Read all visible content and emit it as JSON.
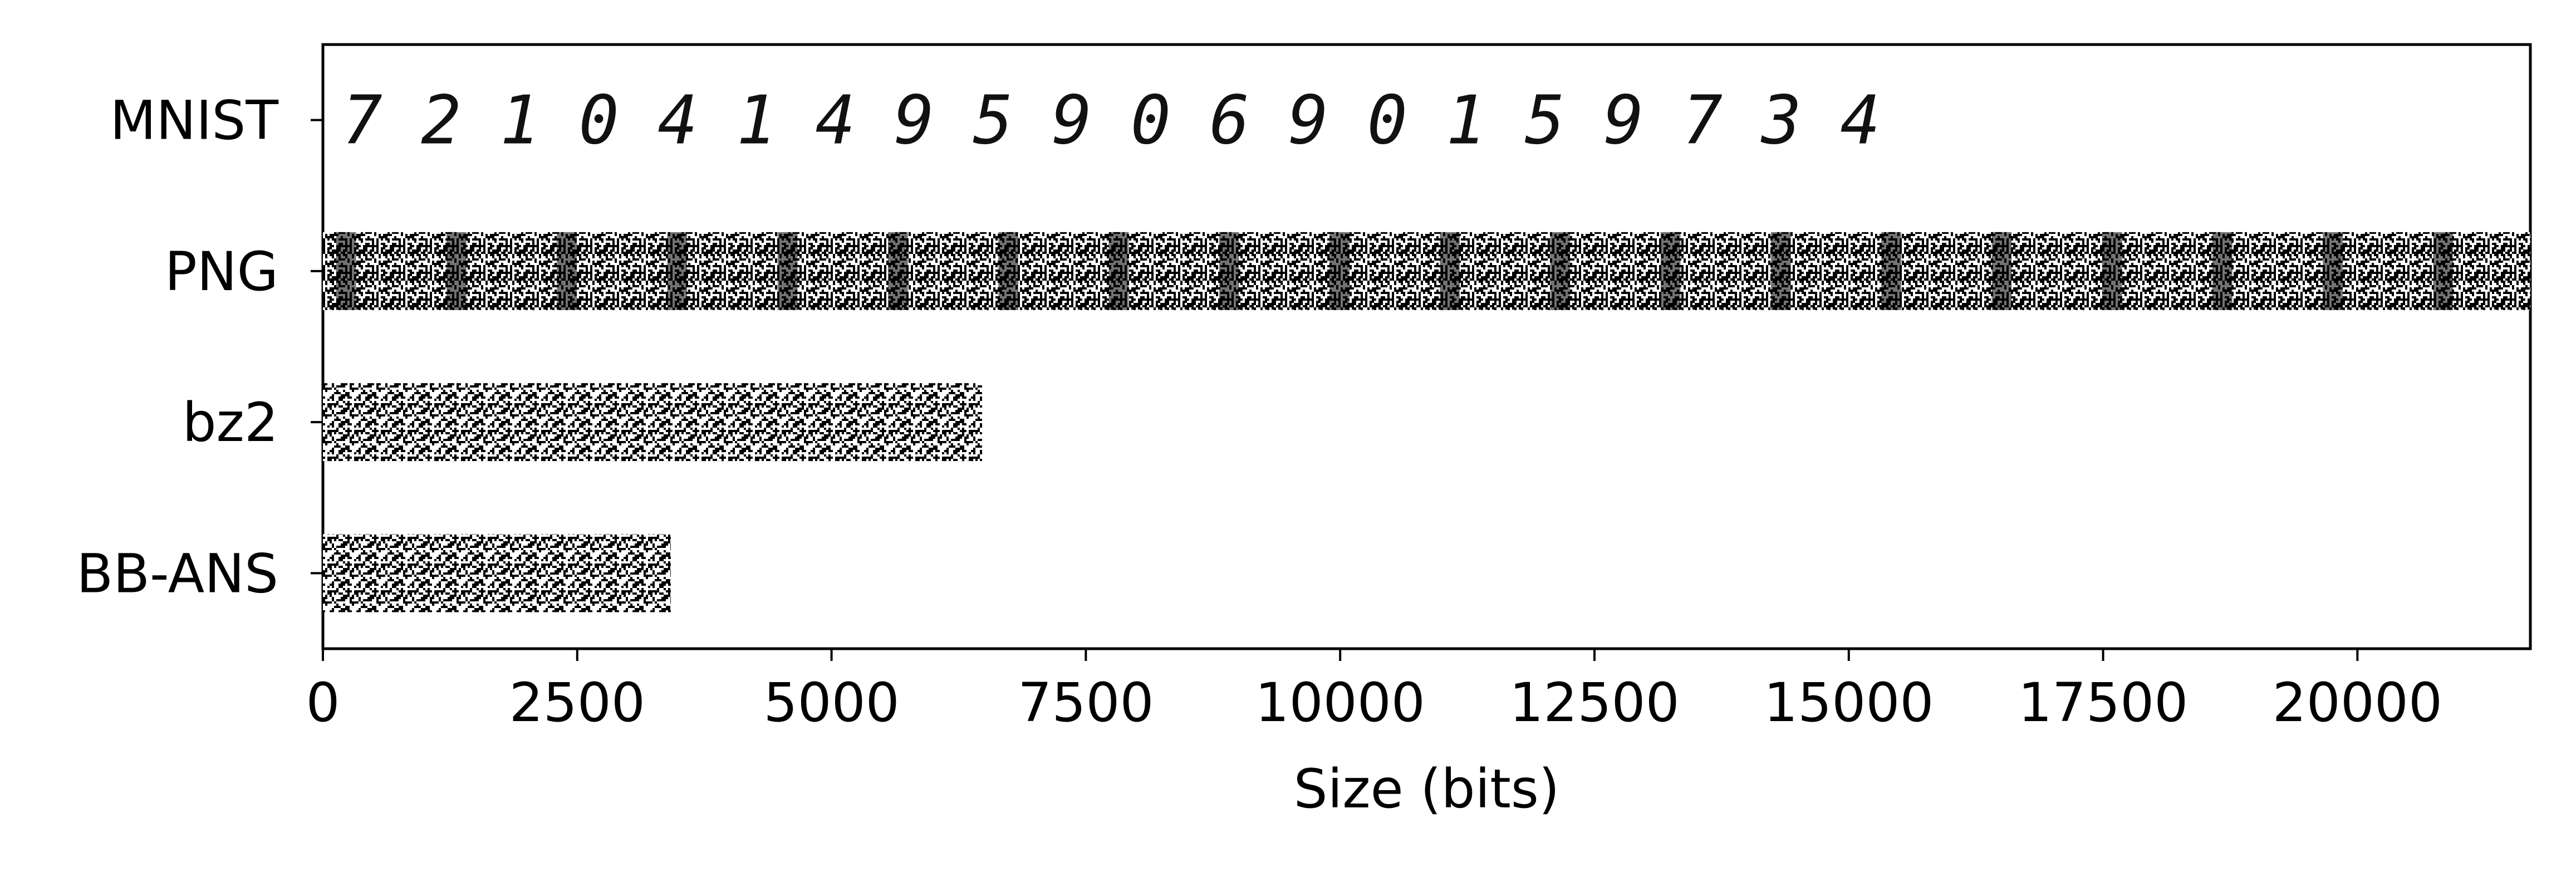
{
  "chart_data": {
    "type": "bar",
    "orientation": "horizontal",
    "categories": [
      "MNIST",
      "PNG",
      "bz2",
      "BB-ANS"
    ],
    "values": [
      null,
      21700,
      6480,
      3420
    ],
    "mnist_digits": [
      "7",
      "2",
      "1",
      "0",
      "4",
      "1",
      "4",
      "9",
      "5",
      "9",
      "0",
      "6",
      "9",
      "0",
      "1",
      "5",
      "9",
      "7",
      "3",
      "4"
    ],
    "mnist_extent": 15500,
    "xlabel": "Size (bits)",
    "xlim": [
      0,
      21700
    ],
    "xticks": [
      0,
      2500,
      5000,
      7500,
      10000,
      12500,
      15000,
      17500,
      20000
    ],
    "bar_fill": "binary-noise",
    "colors": {
      "ink": "#000000",
      "paper": "#ffffff"
    },
    "grid": false
  }
}
